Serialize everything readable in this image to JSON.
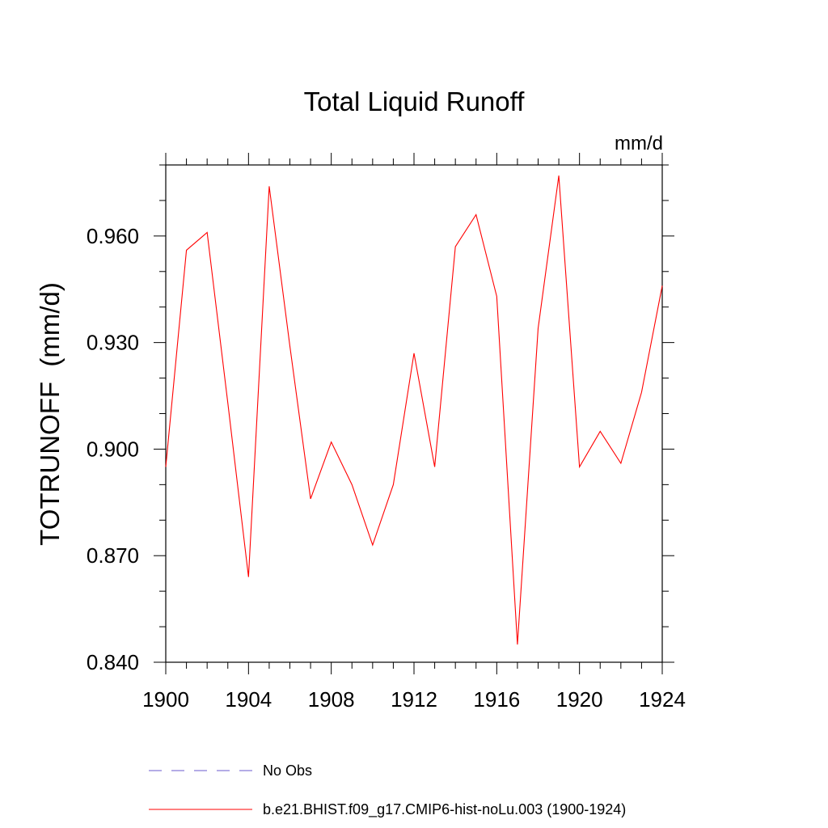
{
  "chart_data": {
    "type": "line",
    "title": "Total Liquid Runoff",
    "units_label": "mm/d",
    "ylabel": "TOTRUNOFF  (mm/d)",
    "xlabel": "",
    "xlim": [
      1900,
      1924
    ],
    "ylim": [
      0.84,
      0.98
    ],
    "x_ticks": [
      "1900",
      "1904",
      "1908",
      "1912",
      "1916",
      "1920",
      "1924"
    ],
    "y_ticks": [
      "0.840",
      "0.870",
      "0.900",
      "0.930",
      "0.960"
    ],
    "x": [
      1900,
      1901,
      1902,
      1903,
      1904,
      1905,
      1906,
      1907,
      1908,
      1909,
      1910,
      1911,
      1912,
      1913,
      1914,
      1915,
      1916,
      1917,
      1918,
      1919,
      1920,
      1921,
      1922,
      1923,
      1924
    ],
    "series": [
      {
        "name": "b.e21.BHIST.f09_g17.CMIP6-hist-noLu.003 (1900-1924)",
        "color": "#ff0000",
        "style": "solid",
        "values": [
          0.895,
          0.956,
          0.961,
          0.913,
          0.864,
          0.974,
          0.929,
          0.886,
          0.902,
          0.89,
          0.873,
          0.89,
          0.927,
          0.895,
          0.957,
          0.966,
          0.943,
          0.845,
          0.934,
          0.977,
          0.895,
          0.905,
          0.896,
          0.916,
          0.946
        ]
      }
    ],
    "legend": [
      {
        "label": "No Obs",
        "color": "#6a5acd",
        "style": "dashed"
      },
      {
        "label": "b.e21.BHIST.f09_g17.CMIP6-hist-noLu.003 (1900-1924)",
        "color": "#ff0000",
        "style": "solid"
      }
    ],
    "grid": false,
    "legend_position": "bottom"
  }
}
